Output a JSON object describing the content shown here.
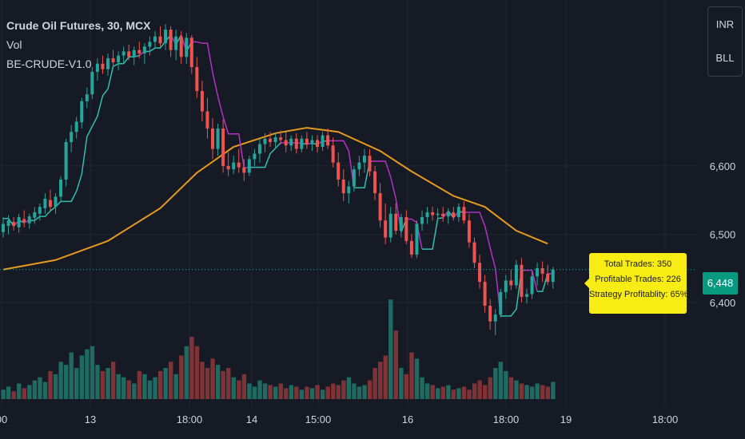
{
  "legend": {
    "title": "Crude Oil Futures, 30, MCX",
    "vol_label": "Vol",
    "indicator_label": "BE-CRUDE-V1.0"
  },
  "currency_buttons": [
    "INR",
    "BLL"
  ],
  "strategy_note": {
    "line1": "Total Trades: 350",
    "line2": "Profitable Trades: 226",
    "line3": "Strategy Profitablity: 65%"
  },
  "last_price": "6,448",
  "colors": {
    "background": "#161a25",
    "up": "#26a69a",
    "down": "#ef5350",
    "ma": "#e59a20",
    "trail_up": "#2fbfae",
    "trail_down": "#b531c4",
    "note_bg": "#f7ec14"
  },
  "chart_data": {
    "type": "candlestick",
    "title": "Crude Oil Futures, 30, MCX",
    "interval": "30",
    "exchange": "MCX",
    "y_ticks": [
      "6,400",
      "6,500",
      "6,600"
    ],
    "y_tick_values": [
      6400,
      6500,
      6600
    ],
    "x_tick_labels": [
      "00",
      "13",
      "18:00",
      "14",
      "15:00",
      "16",
      "18:00",
      "19",
      "18:00"
    ],
    "ylim": [
      6340,
      6820
    ],
    "grid": true,
    "candles": [
      [
        6503,
        6525,
        6495,
        6515
      ],
      [
        6512,
        6528,
        6500,
        6520
      ],
      [
        6518,
        6525,
        6505,
        6512
      ],
      [
        6510,
        6530,
        6502,
        6525
      ],
      [
        6522,
        6535,
        6510,
        6518
      ],
      [
        6516,
        6530,
        6508,
        6526
      ],
      [
        6524,
        6540,
        6515,
        6532
      ],
      [
        6530,
        6545,
        6520,
        6540
      ],
      [
        6538,
        6560,
        6530,
        6552
      ],
      [
        6550,
        6565,
        6535,
        6540
      ],
      [
        6540,
        6560,
        6530,
        6555
      ],
      [
        6555,
        6585,
        6548,
        6580
      ],
      [
        6580,
        6640,
        6570,
        6635
      ],
      [
        6635,
        6660,
        6620,
        6650
      ],
      [
        6650,
        6672,
        6640,
        6665
      ],
      [
        6664,
        6700,
        6655,
        6695
      ],
      [
        6695,
        6715,
        6685,
        6705
      ],
      [
        6705,
        6745,
        6698,
        6738
      ],
      [
        6738,
        6758,
        6725,
        6750
      ],
      [
        6750,
        6762,
        6735,
        6742
      ],
      [
        6742,
        6765,
        6732,
        6758
      ],
      [
        6758,
        6770,
        6745,
        6752
      ],
      [
        6752,
        6768,
        6740,
        6762
      ],
      [
        6762,
        6775,
        6750,
        6768
      ],
      [
        6768,
        6778,
        6755,
        6760
      ],
      [
        6760,
        6775,
        6748,
        6770
      ],
      [
        6770,
        6782,
        6758,
        6765
      ],
      [
        6765,
        6780,
        6750,
        6775
      ],
      [
        6775,
        6790,
        6762,
        6782
      ],
      [
        6782,
        6798,
        6772,
        6790
      ],
      [
        6790,
        6805,
        6775,
        6780
      ],
      [
        6780,
        6808,
        6770,
        6800
      ],
      [
        6800,
        6805,
        6760,
        6770
      ],
      [
        6770,
        6800,
        6755,
        6790
      ],
      [
        6790,
        6798,
        6750,
        6760
      ],
      [
        6760,
        6795,
        6750,
        6788
      ],
      [
        6788,
        6792,
        6735,
        6745
      ],
      [
        6745,
        6760,
        6700,
        6710
      ],
      [
        6710,
        6725,
        6665,
        6680
      ],
      [
        6680,
        6700,
        6640,
        6655
      ],
      [
        6655,
        6670,
        6610,
        6625
      ],
      [
        6625,
        6662,
        6615,
        6655
      ],
      [
        6655,
        6668,
        6590,
        6600
      ],
      [
        6600,
        6620,
        6585,
        6595
      ],
      [
        6595,
        6615,
        6588,
        6605
      ],
      [
        6605,
        6625,
        6590,
        6598
      ],
      [
        6598,
        6610,
        6578,
        6590
      ],
      [
        6590,
        6615,
        6585,
        6610
      ],
      [
        6610,
        6625,
        6600,
        6618
      ],
      [
        6618,
        6640,
        6605,
        6632
      ],
      [
        6632,
        6648,
        6620,
        6640
      ],
      [
        6640,
        6650,
        6628,
        6635
      ],
      [
        6635,
        6648,
        6625,
        6642
      ],
      [
        6642,
        6652,
        6632,
        6638
      ],
      [
        6638,
        6650,
        6620,
        6630
      ],
      [
        6630,
        6645,
        6622,
        6640
      ],
      [
        6640,
        6648,
        6618,
        6625
      ],
      [
        6625,
        6645,
        6620,
        6640
      ],
      [
        6640,
        6650,
        6625,
        6632
      ],
      [
        6632,
        6645,
        6622,
        6638
      ],
      [
        6638,
        6645,
        6620,
        6628
      ],
      [
        6628,
        6650,
        6622,
        6645
      ],
      [
        6645,
        6655,
        6625,
        6630
      ],
      [
        6630,
        6642,
        6598,
        6605
      ],
      [
        6605,
        6620,
        6570,
        6580
      ],
      [
        6580,
        6595,
        6548,
        6560
      ],
      [
        6560,
        6578,
        6545,
        6570
      ],
      [
        6570,
        6600,
        6562,
        6595
      ],
      [
        6595,
        6615,
        6585,
        6605
      ],
      [
        6605,
        6625,
        6590,
        6615
      ],
      [
        6615,
        6625,
        6585,
        6592
      ],
      [
        6592,
        6600,
        6550,
        6560
      ],
      [
        6560,
        6575,
        6510,
        6520
      ],
      [
        6520,
        6545,
        6485,
        6495
      ],
      [
        6495,
        6540,
        6488,
        6530
      ],
      [
        6530,
        6545,
        6500,
        6505
      ],
      [
        6505,
        6530,
        6495,
        6525
      ],
      [
        6525,
        6535,
        6485,
        6490
      ],
      [
        6490,
        6500,
        6465,
        6470
      ],
      [
        6470,
        6520,
        6465,
        6515
      ],
      [
        6515,
        6535,
        6505,
        6525
      ],
      [
        6525,
        6540,
        6515,
        6532
      ],
      [
        6532,
        6540,
        6520,
        6528
      ],
      [
        6528,
        6538,
        6518,
        6530
      ],
      [
        6530,
        6540,
        6518,
        6526
      ],
      [
        6526,
        6538,
        6515,
        6532
      ],
      [
        6532,
        6540,
        6520,
        6525
      ],
      [
        6525,
        6545,
        6518,
        6540
      ],
      [
        6540,
        6548,
        6515,
        6520
      ],
      [
        6520,
        6530,
        6480,
        6488
      ],
      [
        6488,
        6495,
        6450,
        6458
      ],
      [
        6458,
        6470,
        6420,
        6430
      ],
      [
        6430,
        6440,
        6385,
        6395
      ],
      [
        6395,
        6405,
        6360,
        6372
      ],
      [
        6372,
        6390,
        6352,
        6382
      ],
      [
        6382,
        6420,
        6378,
        6415
      ],
      [
        6415,
        6440,
        6405,
        6432
      ],
      [
        6432,
        6448,
        6418,
        6425
      ],
      [
        6425,
        6462,
        6420,
        6455
      ],
      [
        6455,
        6465,
        6400,
        6408
      ],
      [
        6408,
        6420,
        6398,
        6412
      ],
      [
        6412,
        6445,
        6405,
        6438
      ],
      [
        6438,
        6458,
        6425,
        6450
      ],
      [
        6450,
        6460,
        6430,
        6442
      ],
      [
        6442,
        6455,
        6425,
        6430
      ],
      [
        6430,
        6452,
        6420,
        6448
      ]
    ],
    "volume": [
      6,
      8,
      5,
      10,
      7,
      9,
      12,
      14,
      11,
      18,
      16,
      24,
      22,
      30,
      20,
      28,
      32,
      34,
      22,
      18,
      20,
      24,
      16,
      14,
      12,
      10,
      18,
      16,
      12,
      14,
      18,
      20,
      24,
      16,
      28,
      34,
      40,
      34,
      24,
      20,
      26,
      22,
      18,
      20,
      14,
      12,
      16,
      10,
      8,
      12,
      10,
      9,
      8,
      10,
      7,
      9,
      8,
      6,
      8,
      7,
      9,
      6,
      8,
      10,
      9,
      12,
      14,
      10,
      8,
      9,
      12,
      20,
      24,
      28,
      64,
      44,
      20,
      16,
      30,
      26,
      14,
      10,
      9,
      7,
      8,
      9,
      6,
      7,
      8,
      6,
      10,
      12,
      9,
      14,
      20,
      24,
      18,
      14,
      12,
      10,
      9,
      8,
      10,
      9,
      8,
      11
    ],
    "moving_average": [
      [
        0,
        6448
      ],
      [
        10,
        6462
      ],
      [
        20,
        6490
      ],
      [
        30,
        6538
      ],
      [
        37,
        6590
      ],
      [
        44,
        6628
      ],
      [
        52,
        6648
      ],
      [
        58,
        6656
      ],
      [
        64,
        6650
      ],
      [
        72,
        6622
      ],
      [
        78,
        6592
      ],
      [
        86,
        6556
      ],
      [
        92,
        6540
      ],
      [
        98,
        6505
      ],
      [
        104,
        6486
      ]
    ]
  }
}
